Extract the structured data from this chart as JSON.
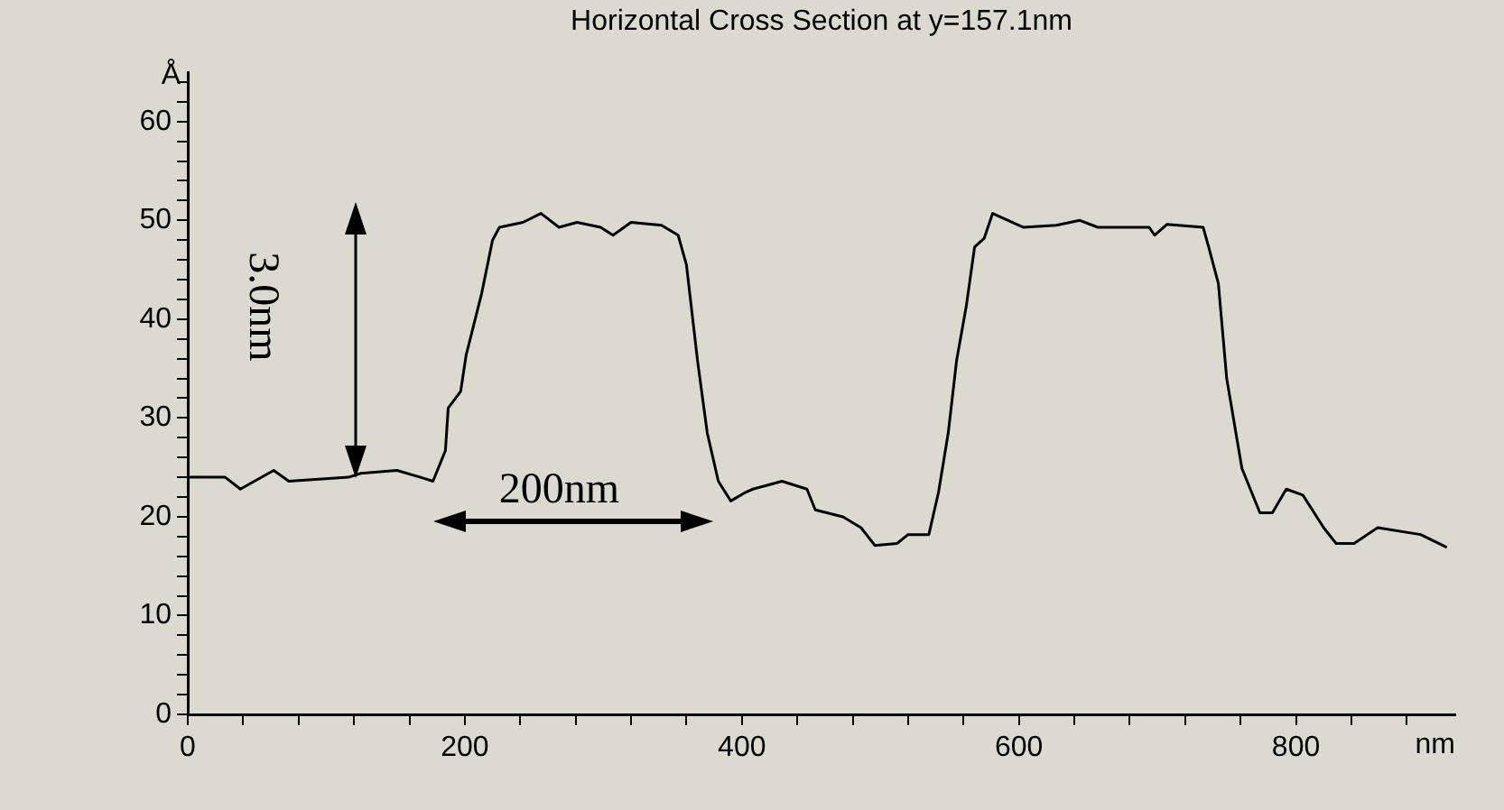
{
  "chart_data": {
    "type": "line",
    "title": "Horizontal Cross Section at y=157.1nm",
    "xlabel": "nm",
    "ylabel": "Å",
    "x": [
      0,
      27,
      38,
      62,
      73,
      116,
      125,
      151,
      168,
      177,
      186,
      188,
      197,
      201,
      212,
      220,
      225,
      242,
      255,
      268,
      281,
      298,
      307,
      320,
      342,
      354,
      360,
      368,
      375,
      383,
      392,
      403,
      408,
      429,
      447,
      453,
      473,
      486,
      496,
      512,
      520,
      535,
      542,
      549,
      555,
      562,
      568,
      575,
      581,
      603,
      627,
      644,
      657,
      694,
      698,
      707,
      733,
      737,
      744,
      750,
      761,
      774,
      783,
      793,
      805,
      820,
      829,
      842,
      859,
      890,
      909
    ],
    "series": [
      {
        "color": "#000000",
        "values": [
          24,
          24,
          22.8,
          24.7,
          23.6,
          24,
          24.4,
          24.7,
          24,
          23.6,
          26.7,
          31,
          32.7,
          36.4,
          42.5,
          48,
          49.3,
          49.8,
          50.7,
          49.3,
          49.8,
          49.3,
          48.5,
          49.8,
          49.5,
          48.5,
          45.5,
          35.8,
          28.5,
          23.6,
          21.6,
          22.5,
          22.8,
          23.6,
          22.8,
          20.7,
          20,
          18.9,
          17.1,
          17.3,
          18.2,
          18.2,
          22.5,
          28.5,
          35.8,
          41.3,
          47.3,
          48.2,
          50.7,
          49.3,
          49.5,
          50,
          49.3,
          49.3,
          48.5,
          49.6,
          49.3,
          47.3,
          43.6,
          34,
          24.9,
          20.4,
          20.4,
          22.8,
          22.2,
          18.9,
          17.3,
          17.3,
          18.9,
          18.2,
          16.9
        ]
      }
    ],
    "xlim": [
      0,
      915
    ],
    "xticks": [
      0,
      {
        "value": 40,
        "label": null
      },
      {
        "value": 80,
        "label": null
      },
      {
        "value": 120,
        "label": null
      },
      {
        "value": 160,
        "label": null
      },
      200,
      {
        "value": 240,
        "label": null
      },
      {
        "value": 280,
        "label": null
      },
      {
        "value": 320,
        "label": null
      },
      {
        "value": 360,
        "label": null
      },
      400,
      {
        "value": 440,
        "label": null
      },
      {
        "value": 480,
        "label": null
      },
      {
        "value": 520,
        "label": null
      },
      {
        "value": 560,
        "label": null
      },
      600,
      {
        "value": 640,
        "label": null
      },
      {
        "value": 680,
        "label": null
      },
      {
        "value": 720,
        "label": null
      },
      {
        "value": 760,
        "label": null
      },
      800,
      {
        "value": 840,
        "label": null
      },
      {
        "value": 880,
        "label": null
      }
    ],
    "ylim": [
      0,
      65
    ],
    "yticks": [
      0,
      {
        "value": 2,
        "label": null
      },
      {
        "value": 4,
        "label": null
      },
      {
        "value": 6,
        "label": null
      },
      {
        "value": 8,
        "label": null
      },
      10,
      {
        "value": 12,
        "label": null
      },
      {
        "value": 14,
        "label": null
      },
      {
        "value": 16,
        "label": null
      },
      {
        "value": 18,
        "label": null
      },
      20,
      {
        "value": 22,
        "label": null
      },
      {
        "value": 24,
        "label": null
      },
      {
        "value": 26,
        "label": null
      },
      {
        "value": 28,
        "label": null
      },
      30,
      {
        "value": 32,
        "label": null
      },
      {
        "value": 34,
        "label": null
      },
      {
        "value": 36,
        "label": null
      },
      {
        "value": 38,
        "label": null
      },
      40,
      {
        "value": 42,
        "label": null
      },
      {
        "value": 44,
        "label": null
      },
      {
        "value": 46,
        "label": null
      },
      {
        "value": 48,
        "label": null
      },
      50,
      {
        "value": 52,
        "label": null
      },
      {
        "value": 54,
        "label": null
      },
      {
        "value": 56,
        "label": null
      },
      {
        "value": 58,
        "label": null
      },
      60,
      {
        "value": 62,
        "label": null
      },
      {
        "value": 64,
        "label": null
      }
    ],
    "annotations": [
      "3.0nm",
      "200nm"
    ],
    "grid": false,
    "legend": false,
    "marker": "none",
    "line_style": "solid"
  }
}
